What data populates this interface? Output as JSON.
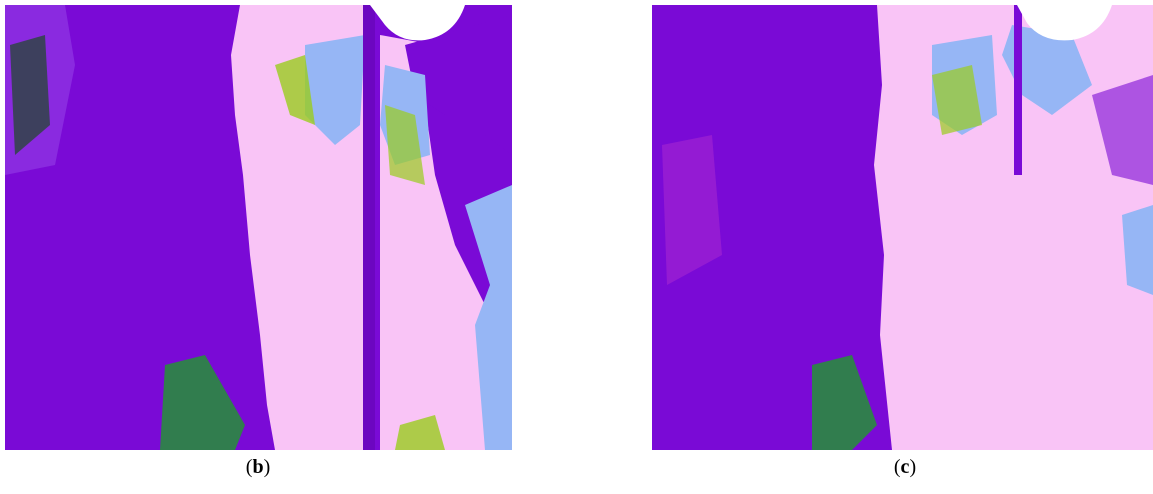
{
  "panels": [
    {
      "caption": {
        "open": "(",
        "letter": "b",
        "close": ")"
      }
    },
    {
      "caption": {
        "open": "(",
        "letter": "c",
        "close": ")"
      }
    }
  ]
}
